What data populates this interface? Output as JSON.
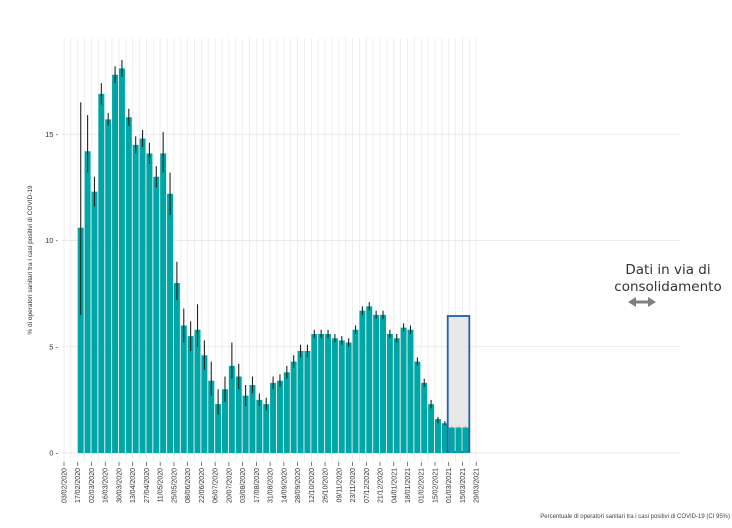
{
  "chart_data": {
    "type": "bar",
    "ylabel": "% di operatori sanitari tra i casi positivi di COVID-19",
    "caption": "Percentuale di operatori sanitari tra i casi positivi di COVID-19 (CI 95%)",
    "ylim": [
      0,
      20
    ],
    "yticks": [
      0,
      5,
      10,
      15
    ],
    "ytick_labels": [
      "0 -",
      "5 -",
      "10 -",
      "15 -"
    ],
    "grid": true,
    "x_tick_labels": [
      "03/02/2020",
      "17/02/2020",
      "02/03/2020",
      "16/03/2020",
      "30/03/2020",
      "13/04/2020",
      "27/04/2020",
      "11/05/2020",
      "25/05/2020",
      "08/06/2020",
      "22/06/2020",
      "06/07/2020",
      "20/07/2020",
      "03/08/2020",
      "17/08/2020",
      "31/08/2020",
      "14/09/2020",
      "28/09/2020",
      "12/10/2020",
      "26/10/2020",
      "09/11/2020",
      "23/11/2020",
      "07/12/2020",
      "21/12/2020",
      "04/01/2021",
      "18/01/2021",
      "01/02/2021",
      "15/02/2021",
      "01/03/2021",
      "15/03/2021",
      "29/03/2021"
    ],
    "week_start": "17/02/2020",
    "values": [
      10.6,
      14.2,
      12.3,
      16.9,
      15.7,
      17.8,
      18.1,
      15.8,
      14.5,
      14.8,
      14.1,
      13.0,
      14.1,
      12.2,
      8.0,
      6.0,
      5.5,
      5.8,
      4.6,
      3.4,
      2.3,
      3.0,
      4.1,
      3.6,
      2.7,
      3.2,
      2.5,
      2.3,
      3.3,
      3.4,
      3.8,
      4.3,
      4.8,
      4.8,
      5.6,
      5.6,
      5.6,
      5.4,
      5.3,
      5.2,
      5.8,
      6.7,
      6.9,
      6.5,
      6.5,
      5.6,
      5.4,
      5.9,
      5.8,
      4.3,
      3.3,
      2.3,
      1.6,
      1.4,
      1.2,
      1.2,
      1.2
    ],
    "ci_low": [
      6.5,
      13.2,
      11.6,
      16.4,
      15.4,
      17.4,
      17.7,
      15.4,
      14.1,
      14.4,
      13.6,
      12.5,
      13.2,
      11.2,
      7.2,
      5.2,
      4.8,
      5.0,
      3.9,
      2.7,
      1.8,
      2.4,
      3.5,
      3.0,
      2.2,
      2.8,
      2.2,
      2.0,
      3.0,
      3.1,
      3.5,
      4.0,
      4.5,
      4.5,
      5.4,
      5.4,
      5.4,
      5.2,
      5.1,
      5.0,
      5.6,
      6.5,
      6.7,
      6.3,
      6.3,
      5.4,
      5.2,
      5.7,
      5.6,
      4.1,
      3.1,
      2.1,
      1.4,
      1.3,
      1.1,
      1.1,
      1.1
    ],
    "ci_high": [
      16.5,
      15.9,
      13.0,
      17.4,
      16.0,
      18.2,
      18.5,
      16.2,
      14.9,
      15.2,
      14.6,
      13.5,
      15.1,
      13.2,
      9.0,
      6.8,
      6.2,
      7.0,
      5.3,
      4.3,
      3.0,
      3.6,
      5.2,
      4.2,
      3.2,
      3.6,
      2.8,
      2.6,
      3.6,
      3.7,
      4.1,
      4.6,
      5.1,
      5.1,
      5.8,
      5.8,
      5.8,
      5.6,
      5.5,
      5.4,
      6.0,
      6.9,
      7.1,
      6.7,
      6.7,
      5.8,
      5.6,
      6.1,
      6.0,
      4.5,
      3.5,
      2.5,
      1.7,
      1.5,
      1.3,
      1.3,
      1.3
    ],
    "bar_color": "#00A6A6",
    "consolidation": {
      "label": "Dati in via di consolidamento",
      "start_index": 54,
      "end_index": 56,
      "fill": "#E4E4E4",
      "stroke": "#1F5FAE",
      "arrow_color": "#808080"
    }
  }
}
